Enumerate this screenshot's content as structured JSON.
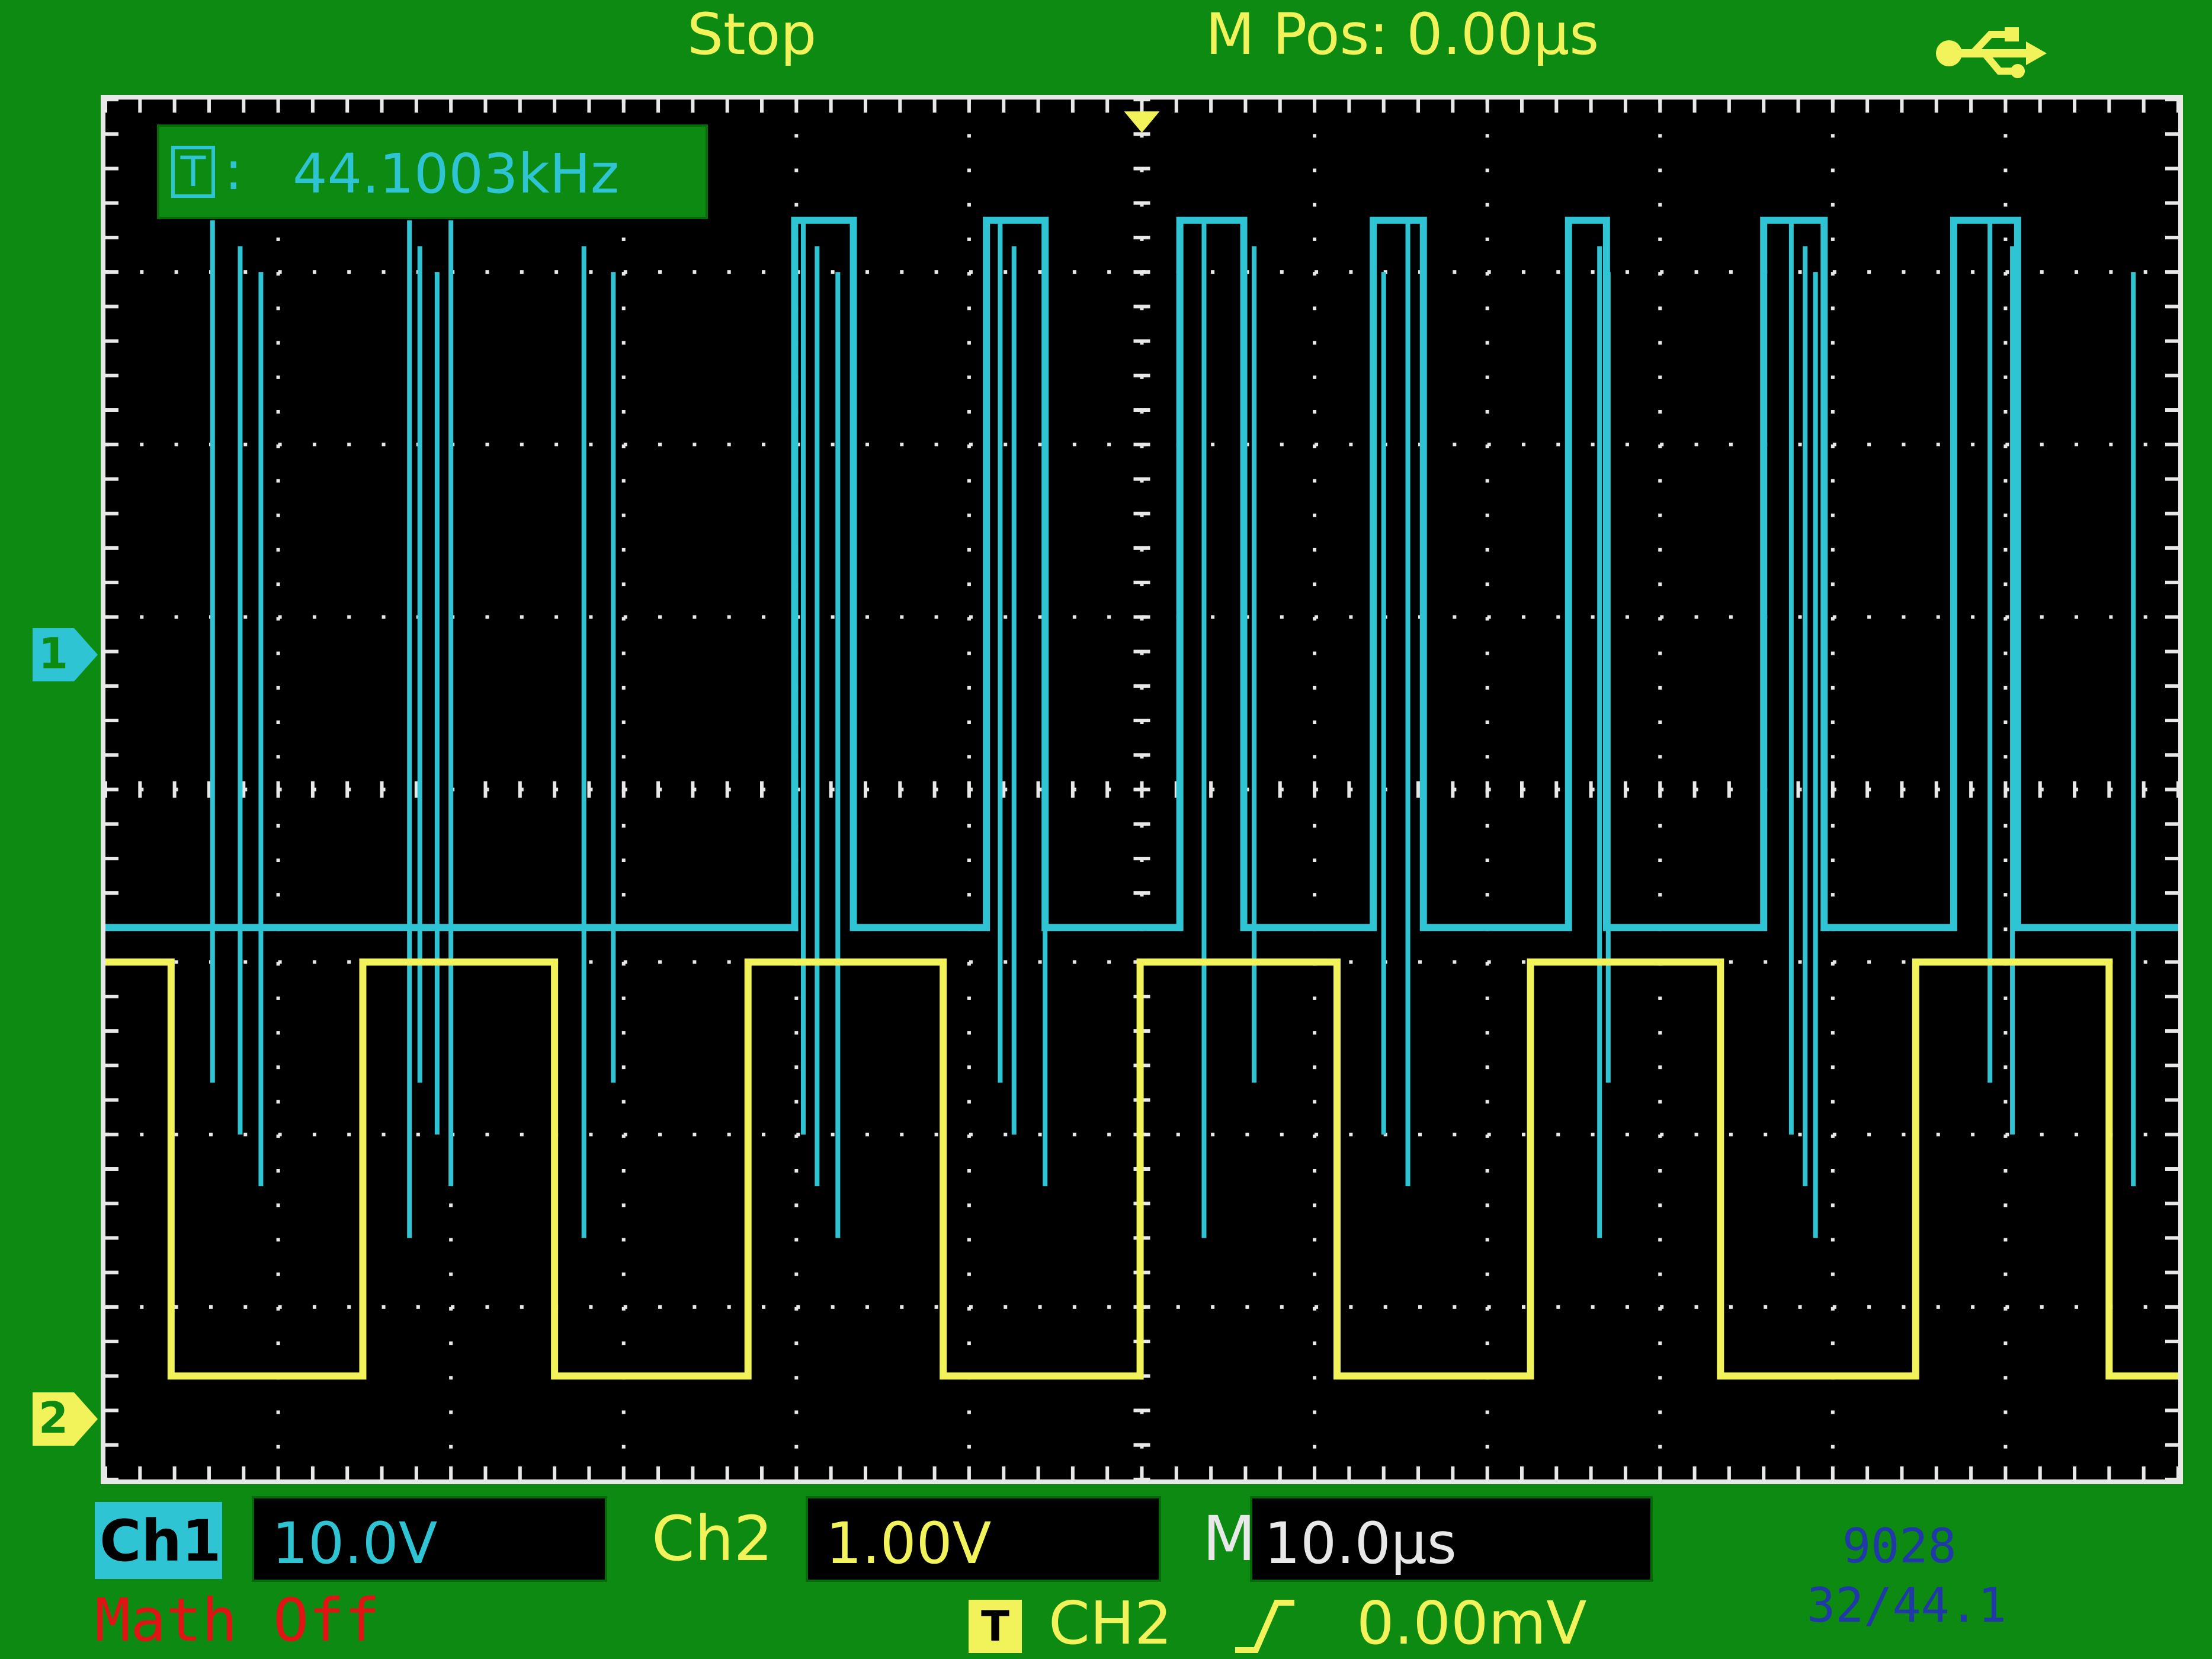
{
  "header": {
    "status": "Stop",
    "m_pos": "M Pos: 0.00μs",
    "usb_icon": "usb-icon"
  },
  "frequency_readout": {
    "icon": "T",
    "separator": ":",
    "value": "44.1003kHz"
  },
  "channel_markers": {
    "ch1": "1",
    "ch2": "2"
  },
  "channels": {
    "ch1": {
      "label": "Ch1",
      "scale": "10.0V",
      "color": "#2fc4d4"
    },
    "ch2": {
      "label": "Ch2",
      "scale": "1.00V",
      "color": "#f2f25a"
    }
  },
  "timebase": {
    "label": "M",
    "value": "10.0μs"
  },
  "math": {
    "status": "Math Off"
  },
  "trigger": {
    "icon": "T",
    "source": "CH2",
    "slope": "rising",
    "level": "0.00mV"
  },
  "overlay_id": {
    "line1": "9028",
    "line2": "32/44.1"
  },
  "colors": {
    "background": "#0c8a12",
    "screen": "#000000",
    "grid": "#e8e8e8",
    "ch1": "#2fc4d4",
    "ch2": "#f2f25a",
    "math": "#e01414"
  },
  "chart_data": {
    "type": "line",
    "title": "",
    "xlabel": "",
    "ylabel": "",
    "grid": true,
    "x_divisions": 12,
    "y_divisions": 8,
    "x_unit": "μs",
    "time_per_div": 10,
    "xlim": [
      -60,
      60
    ],
    "series": [
      {
        "name": "Ch1",
        "color": "#2fc4d4",
        "volts_per_div": 10,
        "baseline_div": -0.8,
        "high_div": 3.3,
        "glitches_x": [
          -53.8,
          -52.2,
          -51.0,
          -42.4,
          -41.8,
          -40.8,
          -40.0,
          -32.3,
          -30.6,
          -19.6,
          -18.8,
          -17.6,
          -8.2,
          -7.4,
          -5.6,
          3.6,
          6.5,
          14.0,
          15.4,
          26.5,
          27.0,
          37.6,
          38.4,
          39.0,
          49.1,
          50.4,
          57.4
        ],
        "pulses": [
          {
            "x_start": -20.1,
            "x_end": -16.7
          },
          {
            "x_start": -9.0,
            "x_end": -5.6
          },
          {
            "x_start": 2.2,
            "x_end": 5.9
          },
          {
            "x_start": 13.4,
            "x_end": 16.3
          },
          {
            "x_start": 24.7,
            "x_end": 26.9
          },
          {
            "x_start": 36.0,
            "x_end": 39.5
          },
          {
            "x_start": 47.0,
            "x_end": 50.7
          }
        ]
      },
      {
        "name": "Ch2",
        "color": "#f2f25a",
        "volts_per_div": 1.0,
        "low_div": -3.4,
        "high_div": -1.0,
        "edges_x": [
          -56.2,
          -45.1,
          -34.0,
          -22.8,
          -11.5,
          -0.1,
          11.3,
          22.5,
          33.5,
          44.8,
          56.0
        ],
        "initial_state": "high"
      }
    ]
  }
}
